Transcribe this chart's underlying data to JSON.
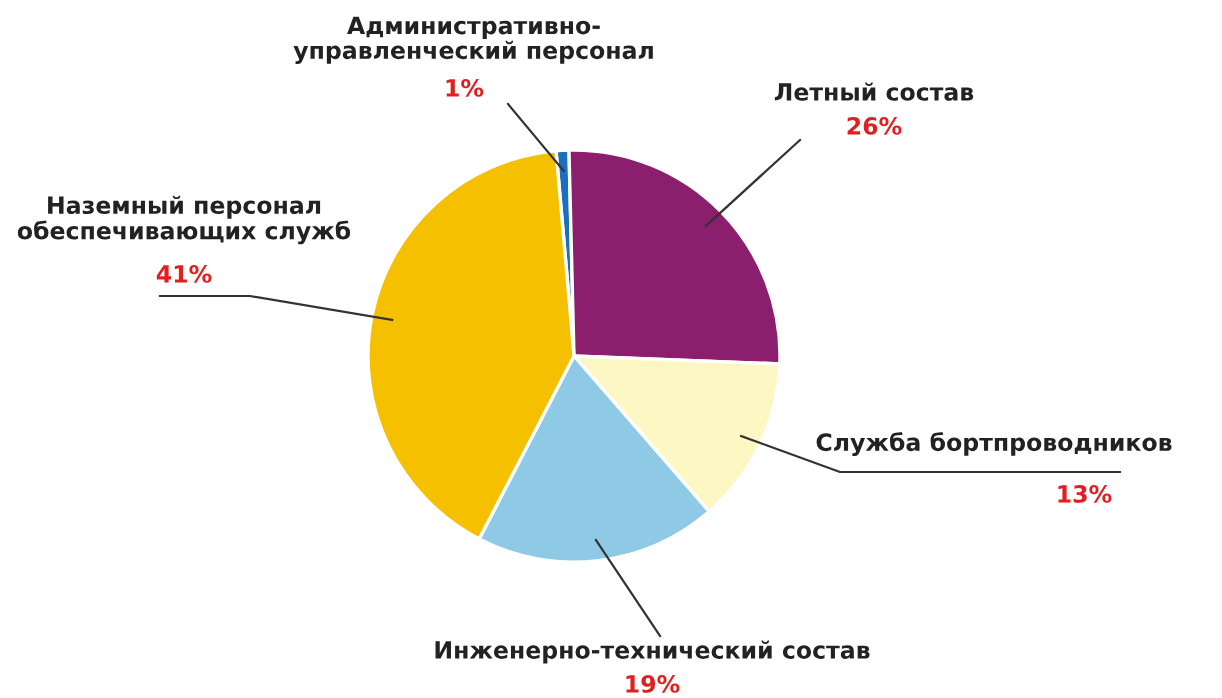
{
  "chart_data": {
    "type": "pie",
    "categories": [
      "Административно-\nуправленческий персонал",
      "Летный состав",
      "Служба бортпроводников",
      "Инженерно-технический состав",
      "Наземный персонал\nобеспечивающих служб"
    ],
    "values": [
      1,
      26,
      13,
      19,
      41
    ],
    "colors": [
      "#1a6fc0",
      "#8b1f6e",
      "#fdf7c3",
      "#8ecae6",
      "#f5c000"
    ],
    "value_labels": [
      "1%",
      "26%",
      "13%",
      "19%",
      "41%"
    ]
  }
}
